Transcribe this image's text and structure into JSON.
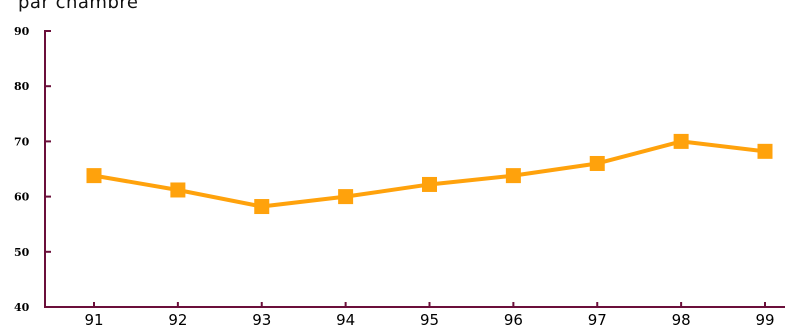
{
  "chart_data": {
    "type": "line",
    "title": "par chambre",
    "xlabel": "",
    "ylabel": "",
    "categories": [
      "91",
      "92",
      "93",
      "94",
      "95",
      "96",
      "97",
      "98",
      "99"
    ],
    "series": [
      {
        "values": [
          63.8,
          61.2,
          58.2,
          60.0,
          62.2,
          63.8,
          66.0,
          70.0,
          68.2
        ]
      }
    ],
    "ylim": [
      40,
      90
    ],
    "yticks": [
      "40",
      "50",
      "60",
      "70",
      "80",
      "90"
    ],
    "grid": false,
    "colors": {
      "series": "#FFA20C",
      "axis": "#6B0F3A"
    }
  }
}
